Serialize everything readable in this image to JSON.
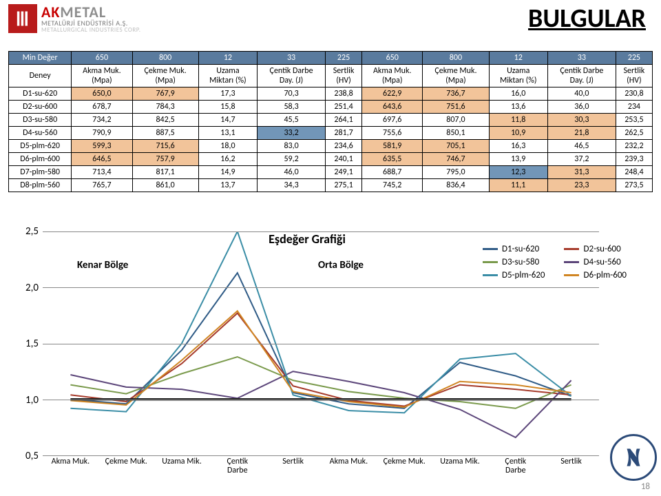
{
  "logo": {
    "brand_ak": "AK",
    "brand_metal": "METAL",
    "sub1": "METALÜRJİ ENDÜSTRİSİ A.Ş.",
    "sub2": "METALLURGICAL INDUSTRIES CORP."
  },
  "page_title": "BULGULAR",
  "page_number": "18",
  "table": {
    "min_label": "Min Değer",
    "deney_label": "Deney",
    "headers": [
      "Akma Muk.\n(Mpa)",
      "Çekme Muk.\n(Mpa)",
      "Uzama\nMiktarı (%)",
      "Çentik Darbe\nDay. (J)",
      "Sertlik\n(HV)",
      "Akma Muk.\n(Mpa)",
      "Çekme Muk.\n(Mpa)",
      "Uzama\nMiktarı (%)",
      "Çentik Darbe\nDay. (J)",
      "Sertlik\n(HV)"
    ],
    "min_row": [
      "650",
      "800",
      "12",
      "33",
      "225",
      "650",
      "800",
      "12",
      "33",
      "225"
    ],
    "rows": [
      {
        "id": "D1-su-620",
        "cells": [
          "650,0",
          "767,9",
          "17,3",
          "70,3",
          "238,8",
          "622,9",
          "736,7",
          "16,0",
          "40,0",
          "230,8"
        ]
      },
      {
        "id": "D2-su-600",
        "cells": [
          "678,7",
          "784,3",
          "15,8",
          "58,3",
          "251,4",
          "643,6",
          "751,6",
          "13,6",
          "36,0",
          "234"
        ]
      },
      {
        "id": "D3-su-580",
        "cells": [
          "734,2",
          "842,5",
          "14,7",
          "45,5",
          "264,1",
          "697,6",
          "807,0",
          "11,8",
          "30,3",
          "253,5"
        ]
      },
      {
        "id": "D4-su-560",
        "cells": [
          "790,9",
          "887,5",
          "13,1",
          "33,2",
          "281,7",
          "755,6",
          "850,1",
          "10,9",
          "21,8",
          "262,5"
        ]
      },
      {
        "id": "D5-plm-620",
        "cells": [
          "599,3",
          "715,6",
          "18,0",
          "83,0",
          "234,6",
          "581,9",
          "705,1",
          "16,3",
          "46,5",
          "232,2"
        ]
      },
      {
        "id": "D6-plm-600",
        "cells": [
          "646,5",
          "757,9",
          "16,2",
          "59,2",
          "240,1",
          "635,5",
          "746,7",
          "13,9",
          "37,2",
          "239,3"
        ]
      },
      {
        "id": "D7-plm-580",
        "cells": [
          "713,4",
          "817,1",
          "14,9",
          "46,0",
          "249,1",
          "688,7",
          "795,0",
          "12,3",
          "31,3",
          "248,4"
        ]
      },
      {
        "id": "D8-plm-560",
        "cells": [
          "765,7",
          "861,0",
          "13,7",
          "34,3",
          "275,1",
          "745,2",
          "836,4",
          "11,1",
          "23,3",
          "273,5"
        ]
      }
    ],
    "highlight_colors": {
      "orange": "#f2c49a",
      "blue": "#7296b8"
    },
    "cell_highlights": {
      "0": {
        "0": "orange",
        "1": "orange",
        "5": "orange",
        "6": "orange"
      },
      "1": {
        "5": "orange",
        "6": "orange"
      },
      "2": {
        "7": "orange",
        "8": "orange"
      },
      "3": {
        "3": "blue",
        "7": "orange",
        "8": "orange"
      },
      "4": {
        "0": "orange",
        "1": "orange",
        "5": "orange",
        "6": "orange"
      },
      "5": {
        "0": "orange",
        "1": "orange",
        "5": "orange",
        "6": "orange"
      },
      "6": {
        "7": "blue",
        "8": "orange"
      },
      "7": {
        "7": "orange",
        "8": "orange"
      }
    }
  },
  "chart": {
    "title": "Eşdeğer Grafiği",
    "kenar_label": "Kenar Bölge",
    "orta_label": "Orta Bölge",
    "y_ticks": [
      "0,5",
      "1,0",
      "1,5",
      "2,0",
      "2,5"
    ],
    "y_min": 0.5,
    "y_max": 2.5,
    "x_labels": [
      "Akma Muk.",
      "Çekme Muk.",
      "Uzama Mik.",
      "Çentik\nDarbe",
      "Sertlik",
      "Akma Muk.",
      "Çekme Muk.",
      "Uzama Mik.",
      "Çentik\nDarbe",
      "Sertlik"
    ],
    "legend": [
      {
        "label": "D1-su-620",
        "color": "#2f5b86"
      },
      {
        "label": "D2-su-600",
        "color": "#a63a2a"
      },
      {
        "label": "D3-su-580",
        "color": "#7a9a4c"
      },
      {
        "label": "D4-su-560",
        "color": "#5c467a"
      },
      {
        "label": "D5-plm-620",
        "color": "#3a8da6"
      },
      {
        "label": "D6-plm-600",
        "color": "#d08522"
      }
    ],
    "series": [
      {
        "color": "#2f5b86",
        "width": 2,
        "v": [
          1.0,
          0.96,
          1.44,
          2.13,
          1.06,
          0.96,
          0.92,
          1.33,
          1.21,
          1.03
        ]
      },
      {
        "color": "#a63a2a",
        "width": 2,
        "v": [
          1.04,
          0.98,
          1.32,
          1.77,
          1.12,
          0.99,
          0.94,
          1.13,
          1.09,
          1.04
        ]
      },
      {
        "color": "#7a9a4c",
        "width": 2,
        "v": [
          1.13,
          1.05,
          1.23,
          1.38,
          1.17,
          1.07,
          1.01,
          0.98,
          0.92,
          1.13
        ]
      },
      {
        "color": "#5c467a",
        "width": 2,
        "v": [
          1.22,
          1.11,
          1.09,
          1.01,
          1.25,
          1.16,
          1.06,
          0.91,
          0.66,
          1.17
        ]
      },
      {
        "color": "#3a8da6",
        "width": 2,
        "v": [
          0.92,
          0.89,
          1.5,
          2.52,
          1.04,
          0.9,
          0.88,
          1.36,
          1.41,
          1.03
        ]
      },
      {
        "color": "#d08522",
        "width": 2,
        "v": [
          0.99,
          0.95,
          1.35,
          1.79,
          1.07,
          0.98,
          0.93,
          1.16,
          1.13,
          1.06
        ]
      },
      {
        "color": "#262626",
        "width": 3.5,
        "v": [
          1.0,
          1.0,
          1.0,
          1.0,
          1.0,
          1.0,
          1.0,
          1.0,
          1.0,
          1.0
        ]
      }
    ]
  }
}
